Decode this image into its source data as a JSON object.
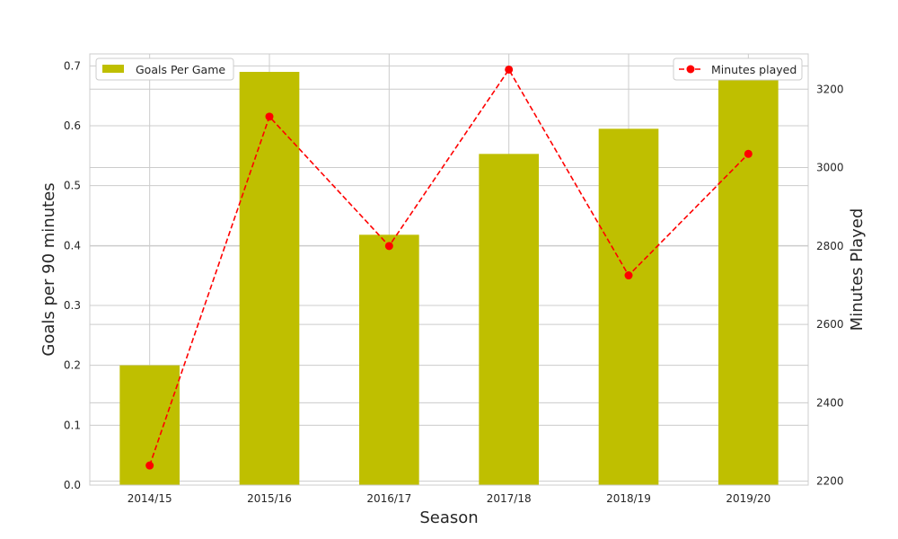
{
  "chart_data": {
    "type": "bar",
    "categories": [
      "2014/15",
      "2015/16",
      "2016/17",
      "2017/18",
      "2018/19",
      "2019/20"
    ],
    "series": [
      {
        "name": "Goals Per Game",
        "type": "bar",
        "axis": "left",
        "color": "#bfbf00",
        "values": [
          0.2,
          0.69,
          0.418,
          0.553,
          0.595,
          0.68
        ]
      },
      {
        "name": "Minutes played",
        "type": "line",
        "axis": "right",
        "color": "#ff0000",
        "line_style": "dashed",
        "marker": "circle",
        "values": [
          2240,
          3130,
          2800,
          3250,
          2725,
          3035
        ]
      }
    ],
    "xlabel": "Season",
    "ylabel_left": "Goals per 90 minutes",
    "ylabel_right": "Minutes Played",
    "ylim_left": [
      0,
      0.72
    ],
    "ylim_right": [
      2190,
      3290
    ],
    "yticks_left": [
      "0.0",
      "0.1",
      "0.2",
      "0.3",
      "0.4",
      "0.5",
      "0.6",
      "0.7"
    ],
    "yticks_right": [
      "2200",
      "2400",
      "2600",
      "2800",
      "3000",
      "3200"
    ],
    "grid": true,
    "legend_bar_position": "upper-left",
    "legend_line_position": "upper-right"
  }
}
